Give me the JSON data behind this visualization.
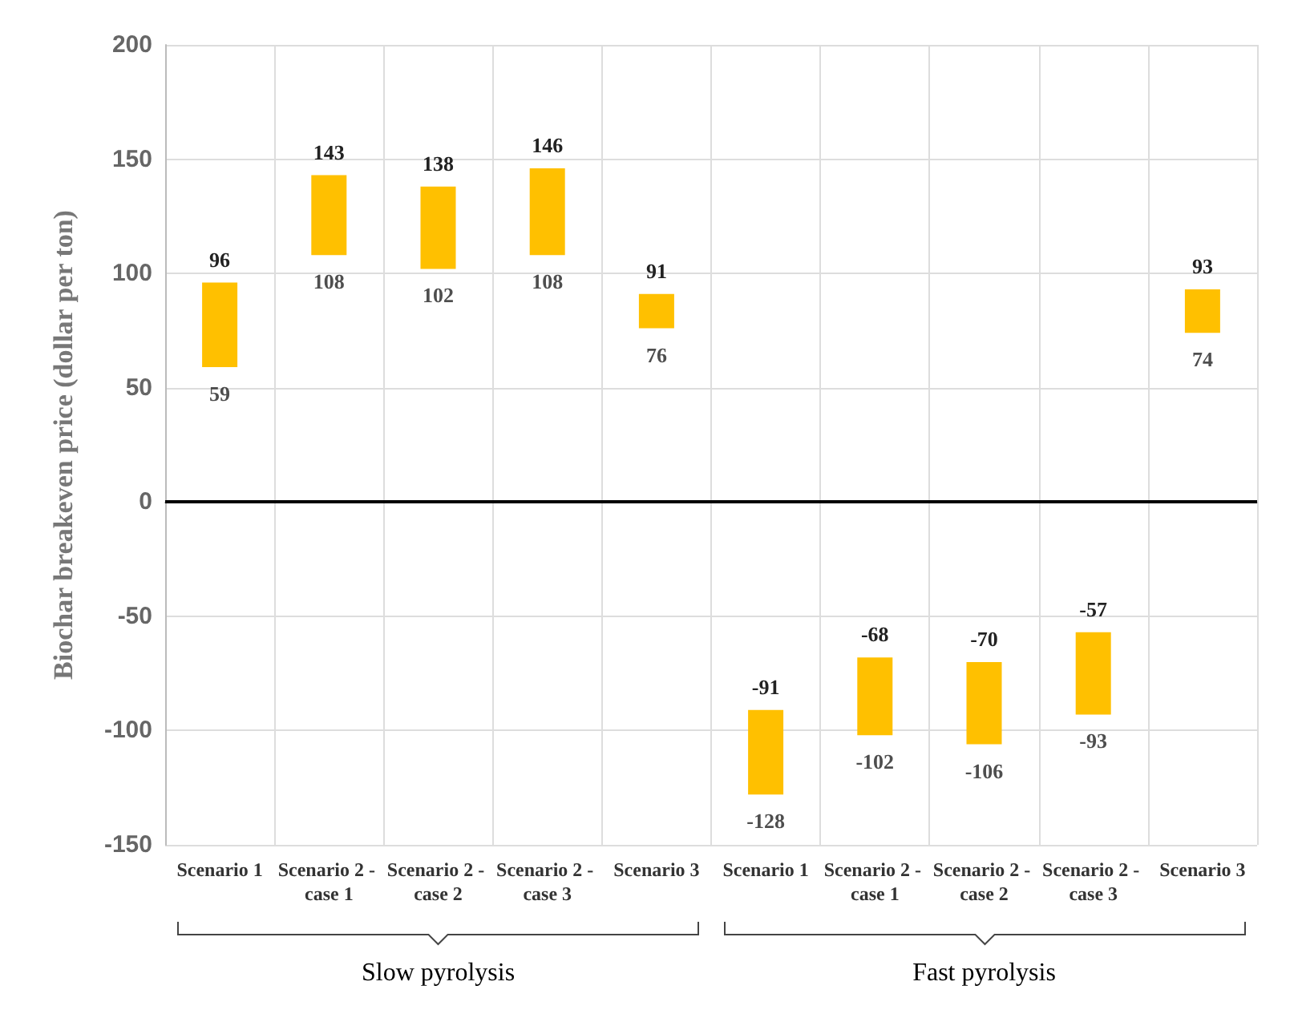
{
  "chart_data": {
    "type": "bar",
    "ylabel": "Biochar breakeven price (dollar per ton)",
    "categories": [
      "Scenario 1",
      "Scenario 2 - case 1",
      "Scenario 2 - case 2",
      "Scenario 2 - case 3",
      "Scenario 3",
      "Scenario 1",
      "Scenario 2 - case 1",
      "Scenario 2 - case 2",
      "Scenario 2 - case 3",
      "Scenario 3"
    ],
    "base": [
      59,
      108,
      102,
      108,
      76,
      -128,
      -102,
      -106,
      -93,
      74
    ],
    "values": [
      37,
      35,
      36,
      38,
      15,
      37,
      34,
      36,
      36,
      19
    ],
    "value_labels": [
      "96",
      "143",
      "138",
      "146",
      "91",
      "-91",
      "-68",
      "-70",
      "-57",
      "93"
    ],
    "color": "#ffc000",
    "ylim": [
      -150,
      200
    ],
    "yticks": [
      -150,
      -100,
      -50,
      0,
      50,
      100,
      150,
      200
    ],
    "grid": true,
    "ref_lines": [
      {
        "axis": "y",
        "value": 0,
        "label": null,
        "color": "#000000"
      }
    ],
    "annotations": [
      "59",
      "108",
      "102",
      "108",
      "76",
      "-128",
      "-102",
      "-106",
      "-93",
      "74",
      "Slow pyrolysis",
      "Fast pyrolysis"
    ]
  }
}
